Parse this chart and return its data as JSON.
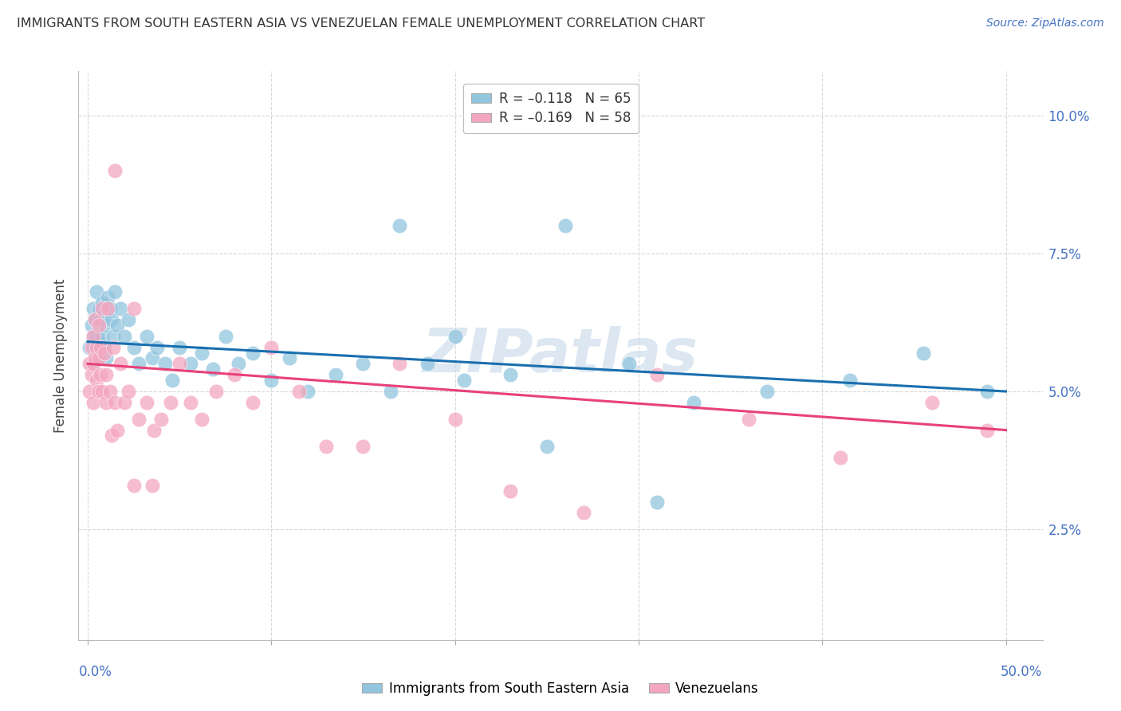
{
  "title": "IMMIGRANTS FROM SOUTH EASTERN ASIA VS VENEZUELAN FEMALE UNEMPLOYMENT CORRELATION CHART",
  "source": "Source: ZipAtlas.com",
  "ylabel": "Female Unemployment",
  "y_ticks": [
    0.025,
    0.05,
    0.075,
    0.1
  ],
  "y_tick_labels": [
    "2.5%",
    "5.0%",
    "7.5%",
    "10.0%"
  ],
  "xlim": [
    -0.005,
    0.52
  ],
  "ylim": [
    0.005,
    0.108
  ],
  "legend_label1": "R = –0.118   N = 65",
  "legend_label2": "R = –0.169   N = 58",
  "legend_series1": "Immigrants from South Eastern Asia",
  "legend_series2": "Venezuelans",
  "color_blue": "#92c5de",
  "color_pink": "#f4a6c0",
  "line_color_blue": "#1a6faf",
  "line_color_pink": "#e8417a",
  "watermark": "ZIPatlas",
  "blue_x": [
    0.001,
    0.002,
    0.002,
    0.003,
    0.003,
    0.003,
    0.004,
    0.004,
    0.005,
    0.005,
    0.005,
    0.006,
    0.006,
    0.006,
    0.007,
    0.007,
    0.008,
    0.008,
    0.009,
    0.009,
    0.01,
    0.01,
    0.011,
    0.012,
    0.013,
    0.014,
    0.015,
    0.016,
    0.018,
    0.02,
    0.022,
    0.025,
    0.028,
    0.032,
    0.035,
    0.038,
    0.042,
    0.046,
    0.05,
    0.056,
    0.062,
    0.068,
    0.075,
    0.082,
    0.09,
    0.1,
    0.11,
    0.12,
    0.135,
    0.15,
    0.165,
    0.185,
    0.205,
    0.23,
    0.26,
    0.295,
    0.33,
    0.37,
    0.415,
    0.455,
    0.49,
    0.17,
    0.2,
    0.25,
    0.31
  ],
  "blue_y": [
    0.058,
    0.062,
    0.055,
    0.06,
    0.065,
    0.058,
    0.063,
    0.057,
    0.06,
    0.056,
    0.068,
    0.059,
    0.065,
    0.057,
    0.063,
    0.058,
    0.066,
    0.06,
    0.064,
    0.058,
    0.062,
    0.056,
    0.067,
    0.065,
    0.063,
    0.06,
    0.068,
    0.062,
    0.065,
    0.06,
    0.063,
    0.058,
    0.055,
    0.06,
    0.056,
    0.058,
    0.055,
    0.052,
    0.058,
    0.055,
    0.057,
    0.054,
    0.06,
    0.055,
    0.057,
    0.052,
    0.056,
    0.05,
    0.053,
    0.055,
    0.05,
    0.055,
    0.052,
    0.053,
    0.08,
    0.055,
    0.048,
    0.05,
    0.052,
    0.057,
    0.05,
    0.08,
    0.06,
    0.04,
    0.03
  ],
  "pink_x": [
    0.001,
    0.001,
    0.002,
    0.002,
    0.003,
    0.003,
    0.003,
    0.004,
    0.004,
    0.005,
    0.005,
    0.006,
    0.006,
    0.006,
    0.007,
    0.007,
    0.008,
    0.008,
    0.009,
    0.01,
    0.01,
    0.011,
    0.012,
    0.013,
    0.014,
    0.015,
    0.016,
    0.018,
    0.02,
    0.022,
    0.025,
    0.028,
    0.032,
    0.036,
    0.04,
    0.045,
    0.05,
    0.056,
    0.062,
    0.07,
    0.08,
    0.09,
    0.1,
    0.115,
    0.13,
    0.15,
    0.17,
    0.2,
    0.23,
    0.27,
    0.31,
    0.36,
    0.41,
    0.46,
    0.49,
    0.035,
    0.025,
    0.015
  ],
  "pink_y": [
    0.055,
    0.05,
    0.058,
    0.053,
    0.06,
    0.055,
    0.048,
    0.063,
    0.056,
    0.058,
    0.052,
    0.062,
    0.056,
    0.05,
    0.058,
    0.053,
    0.065,
    0.05,
    0.057,
    0.053,
    0.048,
    0.065,
    0.05,
    0.042,
    0.058,
    0.048,
    0.043,
    0.055,
    0.048,
    0.05,
    0.065,
    0.045,
    0.048,
    0.043,
    0.045,
    0.048,
    0.055,
    0.048,
    0.045,
    0.05,
    0.053,
    0.048,
    0.058,
    0.05,
    0.04,
    0.04,
    0.055,
    0.045,
    0.032,
    0.028,
    0.053,
    0.045,
    0.038,
    0.048,
    0.043,
    0.033,
    0.033,
    0.09
  ],
  "blue_trend_x0": 0.0,
  "blue_trend_y0": 0.059,
  "blue_trend_x1": 0.5,
  "blue_trend_y1": 0.05,
  "pink_trend_x0": 0.0,
  "pink_trend_y0": 0.055,
  "pink_trend_x1": 0.5,
  "pink_trend_y1": 0.043
}
